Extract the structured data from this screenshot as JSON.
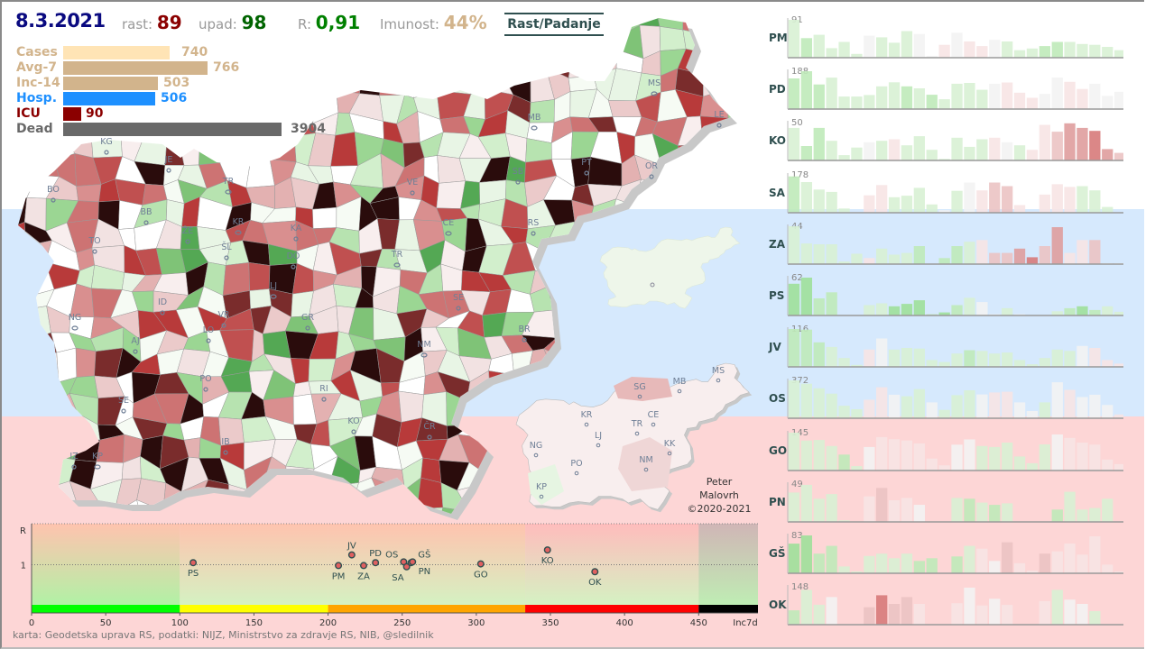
{
  "header": {
    "date": "8.3.2021",
    "rast_label": "rast:",
    "rast_value": "89",
    "upad_label": "upad:",
    "upad_value": "98",
    "r_label": "R:",
    "r_value": "0,91",
    "immunity_label": "Imunost:",
    "immunity_value": "44%",
    "mode_button": "Rast/Padanje"
  },
  "stats": [
    {
      "label": "Cases",
      "value": "740",
      "color": "#ffe4b5",
      "label_color": "#d2b48c"
    },
    {
      "label": "Avg-7",
      "value": "766",
      "color": "#d2b48c",
      "label_color": "#d2b48c"
    },
    {
      "label": "Inc-14",
      "value": "503",
      "color": "#d2b48c",
      "label_color": "#d2b48c"
    },
    {
      "label": "Hosp.",
      "value": "506",
      "color": "#1e90ff",
      "label_color": "#1e90ff"
    },
    {
      "label": "ICU",
      "value": "90",
      "color": "#8b0000",
      "label_color": "#8b0000"
    },
    {
      "label": "Dead",
      "value": "3904",
      "color": "#696969",
      "label_color": "#696969"
    }
  ],
  "map": {
    "labels": [
      "KG",
      "JE",
      "BO",
      "TR",
      "BB",
      "KR",
      "ŽE",
      "ŠL",
      "TO",
      "KA",
      "DO",
      "LJ",
      "VE",
      "CE",
      "SB",
      "RS",
      "MB",
      "MS",
      "LE",
      "PT",
      "OR",
      "TR",
      "ID",
      "VR",
      "LO",
      "GR",
      "SE",
      "BR",
      "AJ",
      "NG",
      "SE",
      "PO",
      "RI",
      "NM",
      "KO",
      "IB",
      "ČR",
      "IZ",
      "KP"
    ],
    "inset_labels": [
      "SG",
      "MB",
      "MS",
      "KR",
      "LJ",
      "TR",
      "CE",
      "NG",
      "PO",
      "NM",
      "KK",
      "KP"
    ],
    "credit": [
      "Peter",
      "Malovrh",
      "©2020-2021"
    ]
  },
  "chart_data": [
    {
      "type": "scatter",
      "xlabel": "Inc7d",
      "ylabel": "R",
      "xticks": [
        0,
        50,
        100,
        150,
        200,
        250,
        300,
        350,
        400,
        450
      ],
      "yticks": [
        1
      ],
      "xlim": [
        0,
        490
      ],
      "ylim": [
        0,
        2
      ],
      "zones": [
        {
          "from": 0,
          "to": 100,
          "color": "#00ff00"
        },
        {
          "from": 100,
          "to": 200,
          "color": "#ffff00"
        },
        {
          "from": 200,
          "to": 333,
          "color": "#ffa500"
        },
        {
          "from": 333,
          "to": 450,
          "color": "#ff0000"
        },
        {
          "from": 450,
          "to": 490,
          "color": "#000000"
        }
      ],
      "points": [
        {
          "label": "PS",
          "x": 109,
          "y": 1.05
        },
        {
          "label": "PM",
          "x": 207,
          "y": 0.98
        },
        {
          "label": "JV",
          "x": 216,
          "y": 1.24
        },
        {
          "label": "ZA",
          "x": 224,
          "y": 0.98
        },
        {
          "label": "PD",
          "x": 232,
          "y": 1.05
        },
        {
          "label": "OS",
          "x": 251,
          "y": 1.07
        },
        {
          "label": "SA",
          "x": 253,
          "y": 0.95
        },
        {
          "label": "PN",
          "x": 256,
          "y": 1.05
        },
        {
          "label": "GŠ",
          "x": 257,
          "y": 1.07
        },
        {
          "label": "GO",
          "x": 303,
          "y": 1.02
        },
        {
          "label": "KO",
          "x": 348,
          "y": 1.36
        },
        {
          "label": "OK",
          "x": 380,
          "y": 0.83
        }
      ]
    },
    {
      "type": "bar",
      "trend_colors": {
        "-3": "#9fe09a",
        "-2": "#bfeab9",
        "-1": "#d8f1d4",
        "0": "#f3f3f3",
        "1": "#f7e4e4",
        "2": "#ebc3c3",
        "3": "#df9d9d",
        "4": "#d77a7a"
      },
      "series": [
        {
          "name": "PM",
          "max": 91,
          "values": [
            91,
            47,
            55,
            23,
            38,
            9,
            53,
            49,
            36,
            64,
            57,
            4,
            31,
            60,
            39,
            28,
            43,
            39,
            18,
            22,
            28,
            38,
            38,
            33,
            31,
            26,
            18,
            33
          ],
          "trend": [
            -1,
            -2,
            -1,
            -1,
            -1,
            -1,
            0,
            -1,
            -1,
            -1,
            0,
            0,
            1,
            0,
            1,
            1,
            0,
            -1,
            -1,
            -1,
            -2,
            -2,
            -1,
            -1,
            -1,
            -1,
            -1,
            0
          ]
        },
        {
          "name": "PD",
          "max": 188,
          "values": [
            152,
            188,
            122,
            156,
            62,
            62,
            70,
            113,
            133,
            113,
            103,
            71,
            49,
            126,
            130,
            96,
            126,
            132,
            81,
            56,
            75,
            156,
            135,
            100,
            126,
            66,
            86,
            71
          ],
          "trend": [
            -2,
            -2,
            -2,
            -1,
            -1,
            -1,
            -1,
            -1,
            -1,
            -2,
            -1,
            -2,
            -1,
            -1,
            -1,
            -1,
            0,
            1,
            1,
            1,
            0,
            0,
            1,
            1,
            0,
            0,
            0,
            1
          ]
        },
        {
          "name": "KO",
          "max": 50,
          "values": [
            43,
            19,
            43,
            26,
            7,
            17,
            24,
            26,
            28,
            20,
            32,
            14,
            2,
            30,
            18,
            28,
            30,
            24,
            20,
            14,
            47,
            38,
            49,
            43,
            39,
            15,
            10,
            48
          ],
          "trend": [
            -1,
            -2,
            -2,
            -1,
            -1,
            -1,
            0,
            -1,
            1,
            -1,
            -1,
            -1,
            -1,
            -1,
            -1,
            -1,
            1,
            0,
            -1,
            1,
            1,
            2,
            3,
            3,
            4,
            3,
            2,
            2
          ]
        },
        {
          "name": "SA",
          "max": 178,
          "values": [
            171,
            144,
            109,
            98,
            20,
            0,
            82,
            130,
            73,
            80,
            117,
            39,
            12,
            103,
            142,
            105,
            142,
            125,
            36,
            5,
            85,
            134,
            121,
            125,
            105,
            27,
            0,
            114
          ],
          "trend": [
            -2,
            -1,
            -1,
            -1,
            -1,
            0,
            1,
            1,
            -1,
            -1,
            -1,
            -1,
            0,
            -1,
            0,
            1,
            2,
            2,
            1,
            1,
            1,
            1,
            1,
            -1,
            -1,
            -1,
            0,
            0
          ]
        },
        {
          "name": "ZA",
          "max": 44,
          "values": [
            44,
            24,
            23,
            23,
            3,
            12,
            7,
            18,
            11,
            13,
            21,
            0,
            7,
            21,
            26,
            28,
            13,
            13,
            18,
            8,
            21,
            43,
            13,
            28,
            28,
            1,
            1,
            11
          ],
          "trend": [
            -1,
            -1,
            -1,
            -1,
            -1,
            -1,
            1,
            -1,
            -1,
            -1,
            -2,
            0,
            -2,
            -2,
            -1,
            1,
            2,
            2,
            3,
            4,
            2,
            3,
            1,
            1,
            2,
            0,
            0,
            0
          ]
        },
        {
          "name": "PS",
          "max": 62,
          "values": [
            52,
            62,
            28,
            38,
            0,
            0,
            17,
            20,
            15,
            19,
            25,
            2,
            5,
            17,
            29,
            22,
            2,
            12,
            2,
            0,
            0,
            7,
            12,
            15,
            9,
            15,
            6,
            22
          ],
          "trend": [
            -3,
            -3,
            -2,
            -2,
            0,
            0,
            -1,
            -1,
            -3,
            -3,
            -3,
            -2,
            -3,
            -2,
            -1,
            0,
            0,
            -1,
            0,
            0,
            0,
            -1,
            -2,
            -3,
            -2,
            -1,
            -1,
            0
          ]
        },
        {
          "name": "JV",
          "max": 116,
          "values": [
            116,
            114,
            75,
            61,
            27,
            6,
            53,
            87,
            53,
            58,
            56,
            21,
            15,
            41,
            51,
            49,
            41,
            44,
            21,
            8,
            27,
            53,
            49,
            64,
            58,
            21,
            10,
            49
          ],
          "trend": [
            -2,
            -2,
            -2,
            -1,
            -1,
            -1,
            1,
            0,
            -1,
            -1,
            -1,
            -1,
            -1,
            -1,
            -2,
            -1,
            -1,
            -1,
            -1,
            -1,
            -1,
            -1,
            -1,
            0,
            1,
            1,
            1,
            2
          ]
        },
        {
          "name": "OS",
          "max": 372,
          "values": [
            372,
            339,
            294,
            242,
            123,
            89,
            182,
            305,
            231,
            216,
            286,
            156,
            82,
            227,
            275,
            234,
            253,
            260,
            156,
            71,
            156,
            353,
            279,
            208,
            231,
            130,
            37,
            167
          ],
          "trend": [
            -1,
            -1,
            -1,
            -1,
            -1,
            -1,
            1,
            1,
            0,
            -1,
            -1,
            0,
            -1,
            -1,
            -1,
            0,
            1,
            1,
            0,
            0,
            -1,
            0,
            1,
            0,
            0,
            0,
            1,
            0
          ]
        },
        {
          "name": "GO",
          "max": 145,
          "values": [
            145,
            115,
            117,
            94,
            61,
            17,
            90,
            128,
            120,
            115,
            104,
            46,
            20,
            99,
            119,
            94,
            90,
            107,
            54,
            28,
            100,
            138,
            125,
            107,
            99,
            42,
            25,
            87
          ],
          "trend": [
            -1,
            -1,
            -1,
            -1,
            -2,
            -1,
            0,
            1,
            1,
            1,
            1,
            1,
            1,
            0,
            0,
            -1,
            -1,
            -1,
            -1,
            -1,
            -1,
            0,
            1,
            1,
            1,
            1,
            1,
            1
          ]
        },
        {
          "name": "PN",
          "max": 49,
          "values": [
            38,
            48,
            30,
            36,
            2,
            0,
            33,
            44,
            28,
            31,
            22,
            0,
            0,
            31,
            30,
            25,
            22,
            24,
            0,
            0,
            0,
            16,
            39,
            16,
            18,
            30,
            0,
            26
          ],
          "trend": [
            -1,
            -1,
            -1,
            -1,
            -1,
            0,
            1,
            2,
            1,
            1,
            0,
            0,
            0,
            -1,
            -2,
            -1,
            -2,
            -1,
            0,
            0,
            0,
            -2,
            -1,
            -1,
            -1,
            -1,
            0,
            1
          ]
        },
        {
          "name": "GŠ",
          "max": 83,
          "values": [
            65,
            83,
            43,
            60,
            15,
            4,
            38,
            43,
            33,
            43,
            27,
            33,
            0,
            37,
            60,
            54,
            27,
            68,
            22,
            6,
            43,
            48,
            65,
            41,
            81,
            19,
            4,
            38
          ],
          "trend": [
            -3,
            -3,
            -2,
            -2,
            -1,
            -1,
            -1,
            -1,
            -1,
            -1,
            -2,
            -2,
            0,
            -2,
            -1,
            1,
            0,
            2,
            1,
            1,
            2,
            1,
            1,
            1,
            1,
            1,
            1,
            1
          ]
        },
        {
          "name": "OK",
          "max": 148,
          "values": [
            56,
            136,
            78,
            108,
            0,
            0,
            68,
            115,
            81,
            108,
            81,
            0,
            0,
            84,
            145,
            75,
            101,
            77,
            0,
            0,
            92,
            136,
            98,
            81,
            53,
            0,
            0,
            56
          ],
          "trend": [
            -2,
            -1,
            -1,
            0,
            0,
            0,
            2,
            4,
            2,
            2,
            1,
            0,
            0,
            1,
            0,
            1,
            0,
            1,
            0,
            0,
            1,
            -1,
            0,
            0,
            -1,
            0,
            0,
            -1
          ]
        }
      ]
    }
  ],
  "footer": "karta: Geodetska uprava RS,  podatki: NIJZ, Ministrstvo za zdravje RS, NIB, @sledilnik"
}
